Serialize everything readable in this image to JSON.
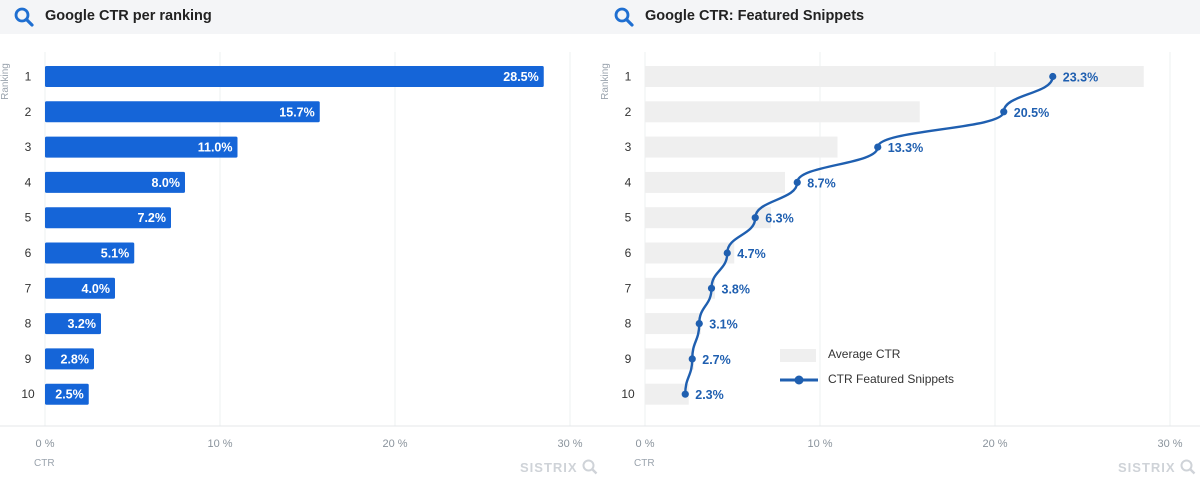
{
  "colors": {
    "bar_blue": "#1565d8",
    "line_blue": "#1f5fb0",
    "avg_bar_grey": "#efefef",
    "header_bg": "#f4f5f7",
    "icon_blue": "#1f6fd1"
  },
  "panels": {
    "left": {
      "title": "Google CTR per ranking",
      "icon": "search-icon",
      "y_axis_title": "Ranking",
      "x_axis_title": "CTR",
      "watermark": "SISTRIX"
    },
    "right": {
      "title": "Google CTR: Featured Snippets",
      "icon": "search-icon",
      "y_axis_title": "Ranking",
      "x_axis_title": "CTR",
      "watermark": "SISTRIX",
      "legend": [
        {
          "label": "Average CTR",
          "kind": "bar"
        },
        {
          "label": "CTR Featured Snippets",
          "kind": "line"
        }
      ]
    }
  },
  "chart_data": [
    {
      "type": "bar",
      "orientation": "horizontal",
      "title": "Google CTR per ranking",
      "xlabel": "CTR",
      "ylabel": "Ranking",
      "categories": [
        "1",
        "2",
        "3",
        "4",
        "5",
        "6",
        "7",
        "8",
        "9",
        "10"
      ],
      "values": [
        28.5,
        15.7,
        11.0,
        8.0,
        7.2,
        5.1,
        4.0,
        3.2,
        2.8,
        2.5
      ],
      "value_labels": [
        "28.5%",
        "15.7%",
        "11.0%",
        "8.0%",
        "7.2%",
        "5.1%",
        "4.0%",
        "3.2%",
        "2.8%",
        "2.5%"
      ],
      "xlim": [
        0,
        30
      ],
      "xticks": [
        "0 %",
        "10 %",
        "20 %",
        "30 %"
      ],
      "xtick_values": [
        0,
        10,
        20,
        30
      ],
      "grid": true
    },
    {
      "type": "bar",
      "orientation": "horizontal",
      "title": "Google CTR: Featured Snippets",
      "xlabel": "CTR",
      "ylabel": "Ranking",
      "categories": [
        "1",
        "2",
        "3",
        "4",
        "5",
        "6",
        "7",
        "8",
        "9",
        "10"
      ],
      "series": [
        {
          "name": "Average CTR",
          "type": "bar",
          "values": [
            28.5,
            15.7,
            11.0,
            8.0,
            7.2,
            5.1,
            4.0,
            3.2,
            2.8,
            2.5
          ]
        },
        {
          "name": "CTR Featured Snippets",
          "type": "line",
          "values": [
            23.3,
            20.5,
            13.3,
            8.7,
            6.3,
            4.7,
            3.8,
            3.1,
            2.7,
            2.3
          ],
          "value_labels": [
            "23.3%",
            "20.5%",
            "13.3%",
            "8.7%",
            "6.3%",
            "4.7%",
            "3.8%",
            "3.1%",
            "2.7%",
            "2.3%"
          ]
        }
      ],
      "xlim": [
        0,
        30
      ],
      "xticks": [
        "0 %",
        "10 %",
        "20 %",
        "30 %"
      ],
      "xtick_values": [
        0,
        10,
        20,
        30
      ],
      "legend_position": "bottom-center",
      "grid": true
    }
  ]
}
